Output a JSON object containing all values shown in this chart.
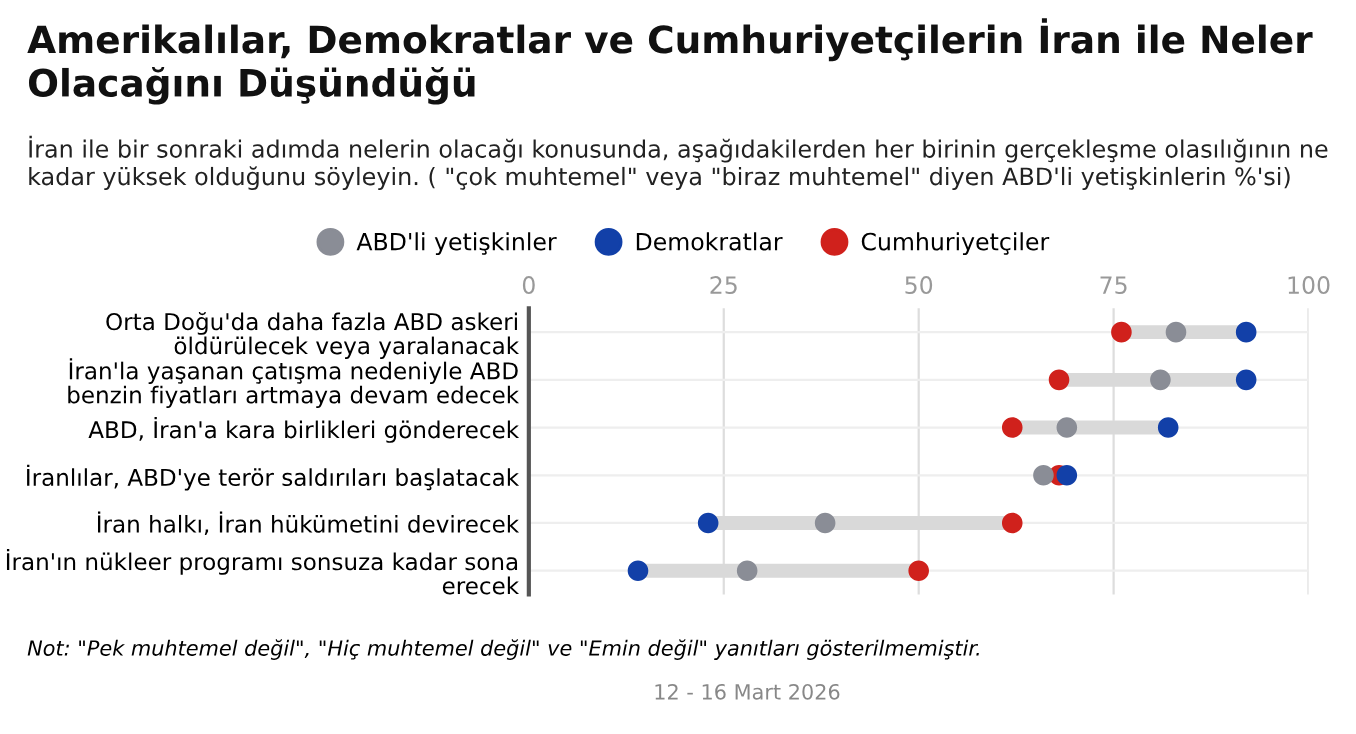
{
  "chart_data": {
    "type": "scatter",
    "title": "Amerikalılar, Demokratlar ve Cumhuriyetçilerin İran ile Neler Olacağını Düşündüğü",
    "subtitle": "İran ile bir sonraki adımda nelerin olacağı konusunda, aşağıdakilerden her birinin gerçekleşme olasılığının ne kadar yüksek olduğunu söyleyin. ( \"çok muhtemel\" veya \"biraz muhtemel\" diyen ABD'li yetişkinlerin %'si)",
    "categories": [
      "Orta Doğu'da daha fazla ABD askeri\nöldürülecek veya yaralanacak",
      "İran'la yaşanan çatışma nedeniyle ABD\nbenzin fiyatları artmaya devam edecek",
      "ABD, İran'a kara birlikleri gönderecek",
      "İranlılar, ABD'ye terör saldırıları başlatacak",
      "İran halkı, İran hükümetini devirecek",
      "İran'ın nükleer programı sonsuza kadar sona\nerecek"
    ],
    "orientation": "horizontal",
    "series": [
      {
        "name": "ABD'li yetişkinler",
        "color": "#8a8d96",
        "values": [
          83,
          81,
          69,
          66,
          38,
          28
        ]
      },
      {
        "name": "Demokratlar",
        "color": "#1240a8",
        "values": [
          92,
          92,
          82,
          69,
          23,
          14
        ]
      },
      {
        "name": "Cumhuriyetçiler",
        "color": "#d0211c",
        "values": [
          76,
          68,
          62,
          68,
          62,
          50
        ]
      }
    ],
    "xlim": [
      0,
      100
    ],
    "xticks": [
      0,
      25,
      50,
      75,
      100
    ],
    "grid": true,
    "legend": "top",
    "marker": "circle",
    "annotations": [
      "Not: \"Pek muhtemel değil\", \"Hiç muhtemel değil\" ve \"Emin değil\" yanıtları gösterilmemiştir.",
      "12 - 16 Mart 2026"
    ]
  }
}
